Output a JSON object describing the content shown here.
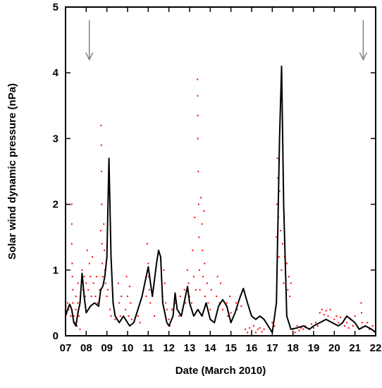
{
  "chart_data": {
    "type": "scatter",
    "x_label": "Date (March 2010)",
    "y_label": "Solar wind dynamic pressure (nPa)",
    "xlim": [
      7,
      22
    ],
    "xticks": [
      {
        "value": 7,
        "label": "07"
      },
      {
        "value": 8,
        "label": "08"
      },
      {
        "value": 9,
        "label": "09"
      },
      10,
      11,
      12,
      13,
      14,
      15,
      16,
      17,
      18,
      19,
      20,
      21,
      22
    ],
    "ylim": [
      0,
      5
    ],
    "yticks": [
      0,
      1,
      2,
      3,
      4,
      5
    ],
    "arrows": {
      "color": "#808080",
      "x": [
        8.15,
        21.4
      ],
      "from": 4.8,
      "to": 4.2
    },
    "series": [
      {
        "type": "scatter",
        "color": "#ff0000",
        "x": [
          7.02,
          7.05,
          7.1,
          7.15,
          7.25,
          7.3,
          7.3,
          7.3,
          7.32,
          7.33,
          7.35,
          7.35,
          7.4,
          7.45,
          7.5,
          7.5,
          7.55,
          7.6,
          7.6,
          7.65,
          7.7,
          7.72,
          7.8,
          7.85,
          7.9,
          7.95,
          8.0,
          8.05,
          8.1,
          8.15,
          8.2,
          8.25,
          8.3,
          8.35,
          8.45,
          8.5,
          8.55,
          8.65,
          8.7,
          8.72,
          8.73,
          8.74,
          8.75,
          8.76,
          8.78,
          8.8,
          8.85,
          8.88,
          8.9,
          8.93,
          9.0,
          9.05,
          9.15,
          9.2,
          9.3,
          9.4,
          9.55,
          9.6,
          9.65,
          9.7,
          9.9,
          9.95,
          10.0,
          10.05,
          10.1,
          10.15,
          10.2,
          10.5,
          10.6,
          10.9,
          10.95,
          11.0,
          11.02,
          11.05,
          11.1,
          11.3,
          11.7,
          11.75,
          11.8,
          11.85,
          11.9,
          12.0,
          12.05,
          12.15,
          12.2,
          12.3,
          12.5,
          12.55,
          12.65,
          12.75,
          12.8,
          12.9,
          12.95,
          13.0,
          13.1,
          13.15,
          13.2,
          13.25,
          13.3,
          13.38,
          13.39,
          13.4,
          13.4,
          13.42,
          13.44,
          13.45,
          13.47,
          13.5,
          13.55,
          13.6,
          13.62,
          13.65,
          13.7,
          13.72,
          13.75,
          13.85,
          13.9,
          14.0,
          14.05,
          14.3,
          14.35,
          14.45,
          14.5,
          14.6,
          14.8,
          14.85,
          14.95,
          15.0,
          15.25,
          15.3,
          15.45,
          15.5,
          15.7,
          15.8,
          15.9,
          16.0,
          16.1,
          16.2,
          16.3,
          16.4,
          16.5,
          16.6,
          17.0,
          17.1,
          17.2,
          17.22,
          17.25,
          17.27,
          17.3,
          17.32,
          17.35,
          17.4,
          17.45,
          17.5,
          17.55,
          17.6,
          17.65,
          17.7,
          17.75,
          17.8,
          17.85,
          17.9,
          18.0,
          18.1,
          18.2,
          18.3,
          18.4,
          18.5,
          18.6,
          18.8,
          18.9,
          19.0,
          19.1,
          19.2,
          19.3,
          19.4,
          19.5,
          19.6,
          19.7,
          19.8,
          20.0,
          20.1,
          20.2,
          20.3,
          20.5,
          20.6,
          20.7,
          20.8,
          20.9,
          21.0,
          21.3,
          21.32,
          21.35,
          21.5,
          21.6,
          21.7,
          21.85
        ],
        "y": [
          0.45,
          0.35,
          0.5,
          0.4,
          0.3,
          2.0,
          1.7,
          1.4,
          1.1,
          0.9,
          0.7,
          0.5,
          0.3,
          0.2,
          0.6,
          0.4,
          0.15,
          0.8,
          0.5,
          0.3,
          0.1,
          0.6,
          1.0,
          0.7,
          0.9,
          0.6,
          0.8,
          1.3,
          0.7,
          1.1,
          0.9,
          0.6,
          1.2,
          0.8,
          0.6,
          0.9,
          0.5,
          0.7,
          1.6,
          3.2,
          2.9,
          2.5,
          2.0,
          1.4,
          1.1,
          0.9,
          1.7,
          1.3,
          1.0,
          0.8,
          0.6,
          0.7,
          0.4,
          0.3,
          0.5,
          0.25,
          0.8,
          0.5,
          0.3,
          0.6,
          0.4,
          0.9,
          0.6,
          0.3,
          0.75,
          0.5,
          0.25,
          0.3,
          0.2,
          0.6,
          1.4,
          1.1,
          0.9,
          0.7,
          0.5,
          0.3,
          0.6,
          1.0,
          0.8,
          0.5,
          0.4,
          0.25,
          0.15,
          0.4,
          0.3,
          0.5,
          0.3,
          0.6,
          0.4,
          0.7,
          0.5,
          1.0,
          0.8,
          0.6,
          0.5,
          1.3,
          0.9,
          1.8,
          0.7,
          3.9,
          3.65,
          3.35,
          3.0,
          2.5,
          2.0,
          1.5,
          1.0,
          0.7,
          2.1,
          1.7,
          1.3,
          0.9,
          1.9,
          1.1,
          0.6,
          0.8,
          0.5,
          0.4,
          0.7,
          0.6,
          0.9,
          0.5,
          0.8,
          0.4,
          0.5,
          0.3,
          0.6,
          0.35,
          0.5,
          0.4,
          0.6,
          0.45,
          0.1,
          0.05,
          0.12,
          0.08,
          0.15,
          0.05,
          0.1,
          0.12,
          0.06,
          0.1,
          0.2,
          0.15,
          1.5,
          2.0,
          2.7,
          2.4,
          1.8,
          1.2,
          2.2,
          1.6,
          1.0,
          1.4,
          0.8,
          1.2,
          0.9,
          1.1,
          0.7,
          0.9,
          0.6,
          0.8,
          0.1,
          0.05,
          0.15,
          0.08,
          0.12,
          0.1,
          0.15,
          0.1,
          0.18,
          0.12,
          0.2,
          0.15,
          0.35,
          0.4,
          0.32,
          0.38,
          0.3,
          0.4,
          0.25,
          0.3,
          0.2,
          0.28,
          0.15,
          0.2,
          0.12,
          0.25,
          0.15,
          0.3,
          0.5,
          0.35,
          0.2,
          0.15,
          0.2,
          0.1,
          0.15
        ]
      },
      {
        "type": "line",
        "color": "#000000",
        "x": [
          7.0,
          7.1,
          7.2,
          7.3,
          7.4,
          7.5,
          7.6,
          7.7,
          7.8,
          7.9,
          8.0,
          8.2,
          8.4,
          8.6,
          8.7,
          8.8,
          8.9,
          9.0,
          9.1,
          9.2,
          9.3,
          9.4,
          9.6,
          9.8,
          10.0,
          10.1,
          10.3,
          10.5,
          10.7,
          10.9,
          11.0,
          11.2,
          11.4,
          11.5,
          11.6,
          11.7,
          11.9,
          12.0,
          12.2,
          12.3,
          12.4,
          12.6,
          12.8,
          12.9,
          13.0,
          13.2,
          13.4,
          13.6,
          13.8,
          14.0,
          14.2,
          14.4,
          14.6,
          14.8,
          15.0,
          15.2,
          15.4,
          15.6,
          15.8,
          16.0,
          16.2,
          16.4,
          16.6,
          16.8,
          17.0,
          17.2,
          17.35,
          17.45,
          17.55,
          17.7,
          17.9,
          18.2,
          18.5,
          18.8,
          19.0,
          19.3,
          19.6,
          19.9,
          20.2,
          20.4,
          20.6,
          20.8,
          21.0,
          21.2,
          21.5,
          21.8,
          22.0
        ],
        "y": [
          0.3,
          0.4,
          0.48,
          0.4,
          0.2,
          0.15,
          0.35,
          0.5,
          0.95,
          0.6,
          0.35,
          0.45,
          0.5,
          0.45,
          0.7,
          0.75,
          0.9,
          1.2,
          2.7,
          1.2,
          0.5,
          0.3,
          0.2,
          0.3,
          0.2,
          0.15,
          0.2,
          0.4,
          0.6,
          0.9,
          1.05,
          0.6,
          1.1,
          1.3,
          1.2,
          0.5,
          0.2,
          0.15,
          0.3,
          0.65,
          0.4,
          0.3,
          0.6,
          0.75,
          0.5,
          0.3,
          0.4,
          0.3,
          0.5,
          0.25,
          0.2,
          0.45,
          0.55,
          0.45,
          0.2,
          0.35,
          0.55,
          0.72,
          0.5,
          0.3,
          0.25,
          0.3,
          0.25,
          0.15,
          0.05,
          0.5,
          3.0,
          4.1,
          2.0,
          0.3,
          0.1,
          0.12,
          0.15,
          0.1,
          0.15,
          0.2,
          0.25,
          0.2,
          0.15,
          0.2,
          0.3,
          0.25,
          0.2,
          0.1,
          0.15,
          0.1,
          0.05
        ]
      }
    ]
  }
}
